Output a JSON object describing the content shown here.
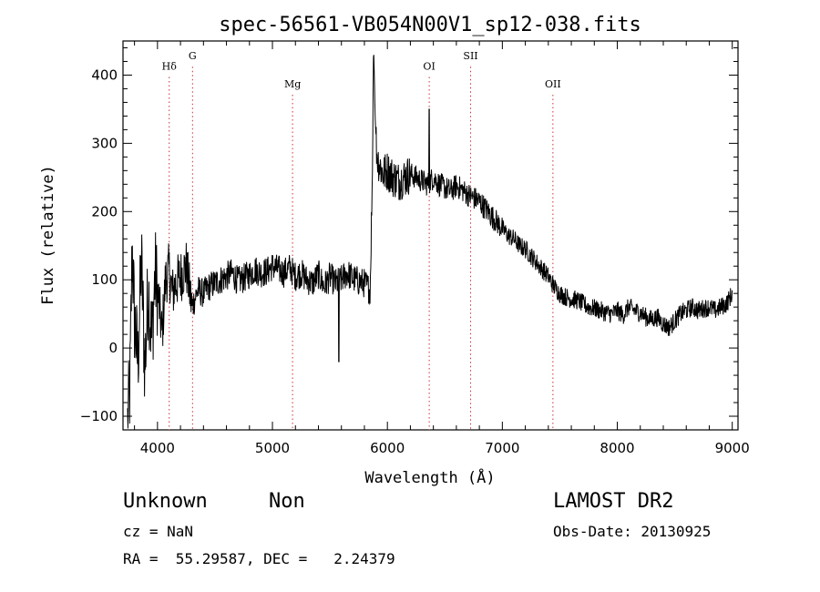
{
  "chart_data": {
    "type": "line",
    "title": "spec-56561-VB054N00V1_sp12-038.fits",
    "xlabel": "Wavelength (Å)",
    "ylabel": "Flux (relative)",
    "xlim": [
      3700,
      9050
    ],
    "ylim": [
      -120,
      450
    ],
    "xticks": [
      4000,
      5000,
      6000,
      7000,
      8000,
      9000
    ],
    "xtick_labels": [
      "4000",
      "5000",
      "6000",
      "7000",
      "8000",
      "9000"
    ],
    "yticks": [
      -100,
      0,
      100,
      200,
      300,
      400
    ],
    "ytick_labels": [
      "−100",
      "0",
      "100",
      "200",
      "300",
      "400"
    ],
    "grid": false,
    "line_color": "#000000",
    "marker_color": "#cc3333",
    "lines": [
      {
        "label": "Hδ",
        "wavelength": 4102,
        "label_flux": 408
      },
      {
        "label": "G",
        "wavelength": 4305,
        "label_flux": 423
      },
      {
        "label": "Mg",
        "wavelength": 5175,
        "label_flux": 382
      },
      {
        "label": "OI",
        "wavelength": 6364,
        "label_flux": 408
      },
      {
        "label": "SII",
        "wavelength": 6724,
        "label_flux": 423
      },
      {
        "label": "OII",
        "wavelength": 7440,
        "label_flux": 382
      }
    ],
    "series": [
      {
        "x": [
          3740,
          3760,
          3780,
          3800,
          3830,
          3860,
          3890,
          3920,
          3950,
          3980,
          4010,
          4040,
          4070,
          4100,
          4130,
          4160,
          4200,
          4250,
          4300,
          4350,
          4400,
          4450,
          4500,
          4550,
          4600,
          4650,
          4700,
          4750,
          4800,
          4850,
          4900,
          4950,
          5000,
          5050,
          5100,
          5150,
          5200,
          5250,
          5300,
          5350,
          5400,
          5450,
          5500,
          5550,
          5600,
          5650,
          5700,
          5750,
          5800,
          5850,
          5870,
          5880,
          5895,
          5910,
          5930,
          5960,
          6000,
          6050,
          6100,
          6150,
          6200,
          6250,
          6300,
          6350,
          6400,
          6450,
          6500,
          6550,
          6600,
          6650,
          6700,
          6750,
          6800,
          6850,
          6900,
          6950,
          7000,
          7050,
          7100,
          7150,
          7200,
          7250,
          7300,
          7350,
          7400,
          7450,
          7500,
          7550,
          7600,
          7650,
          7700,
          7750,
          7800,
          7850,
          7900,
          7950,
          8000,
          8050,
          8100,
          8150,
          8200,
          8250,
          8300,
          8350,
          8400,
          8450,
          8500,
          8550,
          8600,
          8650,
          8700,
          8750,
          8800,
          8850,
          8900,
          8950,
          9000
        ],
        "y": [
          -110,
          -60,
          150,
          40,
          -20,
          130,
          -30,
          90,
          10,
          110,
          70,
          20,
          100,
          115,
          80,
          95,
          105,
          120,
          60,
          85,
          80,
          90,
          95,
          100,
          105,
          110,
          98,
          102,
          108,
          115,
          110,
          112,
          120,
          115,
          110,
          118,
          105,
          110,
          100,
          95,
          108,
          90,
          105,
          95,
          100,
          110,
          102,
          98,
          95,
          85,
          260,
          445,
          330,
          280,
          270,
          255,
          260,
          250,
          245,
          250,
          255,
          250,
          245,
          240,
          250,
          240,
          235,
          230,
          238,
          232,
          225,
          220,
          215,
          205,
          195,
          185,
          175,
          165,
          160,
          150,
          145,
          135,
          125,
          115,
          105,
          90,
          80,
          75,
          72,
          70,
          65,
          60,
          58,
          55,
          52,
          50,
          55,
          48,
          60,
          55,
          52,
          45,
          42,
          45,
          35,
          30,
          40,
          50,
          55,
          60,
          55,
          58,
          60,
          55,
          60,
          65,
          80
        ]
      }
    ],
    "footer": {
      "class": "Unknown",
      "subclass": "Non",
      "survey": "LAMOST DR2",
      "redshift": "cz = NaN",
      "obs_date": "Obs-Date: 20130925",
      "coords": "RA =  55.29587, DEC =   2.24379"
    }
  }
}
